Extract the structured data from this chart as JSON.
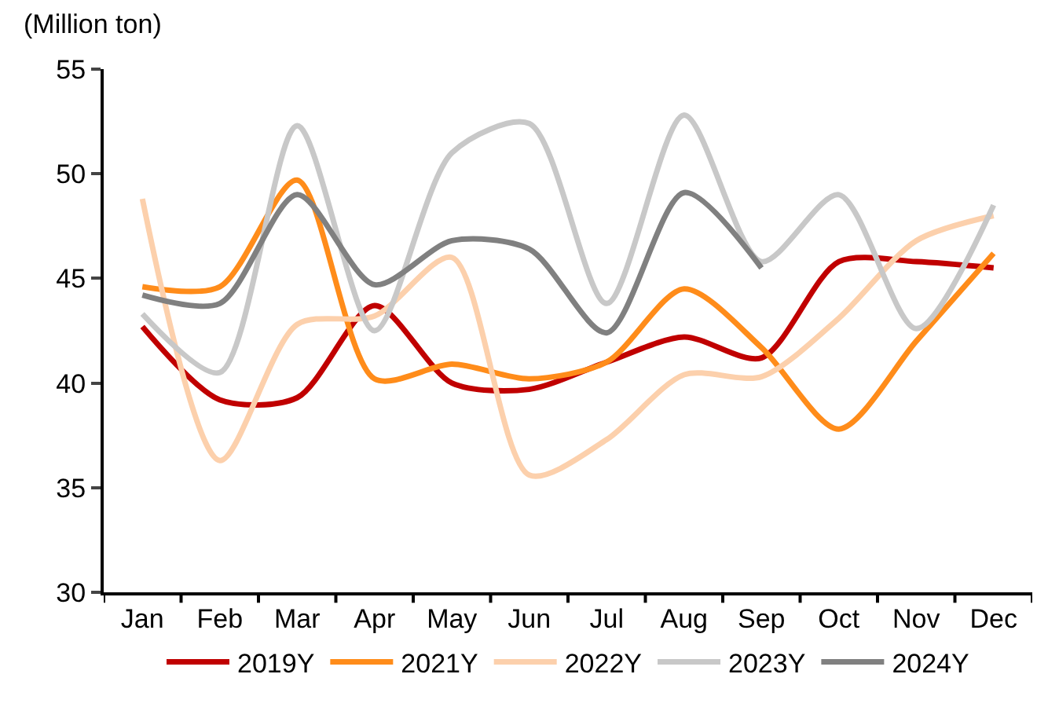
{
  "chart_data": {
    "type": "line",
    "ylabel": "(Million ton)",
    "categories": [
      "Jan",
      "Feb",
      "Mar",
      "Apr",
      "May",
      "Jun",
      "Jul",
      "Aug",
      "Sep",
      "Oct",
      "Nov",
      "Dec"
    ],
    "series": [
      {
        "name": "2019Y",
        "color": "#c00000",
        "values": [
          42.7,
          39.2,
          39.3,
          43.7,
          40.0,
          39.7,
          41.0,
          42.2,
          41.2,
          45.8,
          45.8,
          45.5
        ]
      },
      {
        "name": "2021Y",
        "color": "#ff8c1a",
        "values": [
          44.6,
          44.6,
          49.7,
          40.2,
          40.9,
          40.2,
          41.0,
          44.5,
          41.7,
          37.8,
          42.0,
          46.2
        ]
      },
      {
        "name": "2022Y",
        "color": "#fcd0ac",
        "values": [
          48.8,
          36.3,
          42.8,
          43.2,
          46.0,
          35.6,
          37.3,
          40.4,
          40.3,
          43.1,
          46.8,
          48.0
        ]
      },
      {
        "name": "2023Y",
        "color": "#c8c8c8",
        "values": [
          43.3,
          40.5,
          52.3,
          42.5,
          51.0,
          52.4,
          43.8,
          52.8,
          45.8,
          49.0,
          42.6,
          48.5
        ]
      },
      {
        "name": "2024Y",
        "color": "#808080",
        "values": [
          44.2,
          43.8,
          49.0,
          44.7,
          46.8,
          46.4,
          42.4,
          49.1,
          45.5,
          null,
          null,
          null
        ]
      }
    ],
    "ylim": [
      30,
      55
    ],
    "yticks": [
      30,
      35,
      40,
      45,
      50,
      55
    ],
    "grid": false,
    "legend": "bottom",
    "marker": "none",
    "line_style": "solid"
  }
}
